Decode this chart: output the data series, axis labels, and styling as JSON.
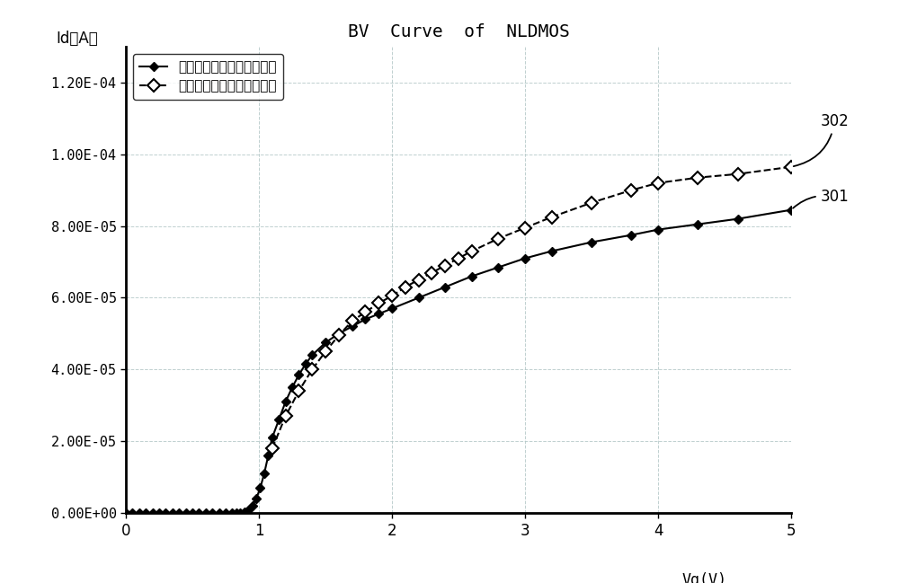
{
  "title": "BV  Curve  of  NLDMOS",
  "legend1": "未使用本专利所说明的方法",
  "legend2": "使用本专利所说明的方法后",
  "label301": "301",
  "label302": "302",
  "ylabel_text": "Id（A）",
  "xlim": [
    0,
    5.0
  ],
  "ylim": [
    0,
    0.00013
  ],
  "yticks": [
    0,
    2e-05,
    4e-05,
    6e-05,
    8e-05,
    0.0001,
    0.00012
  ],
  "ytick_labels": [
    "0.00E+00",
    "2.00E-05",
    "4.00E-05",
    "6.00E-05",
    "8.00E-05",
    "1.00E-04",
    "1.20E-04"
  ],
  "xticks": [
    0,
    1,
    2,
    3,
    4,
    5
  ],
  "background_color": "#ffffff",
  "plot_bg_color": "#ffffff",
  "grid_color": "#b0c4c4",
  "line_color": "#000000",
  "series1_x": [
    0.0,
    0.05,
    0.1,
    0.15,
    0.2,
    0.25,
    0.3,
    0.35,
    0.4,
    0.45,
    0.5,
    0.55,
    0.6,
    0.65,
    0.7,
    0.75,
    0.8,
    0.83,
    0.86,
    0.89,
    0.92,
    0.95,
    0.98,
    1.01,
    1.04,
    1.07,
    1.1,
    1.15,
    1.2,
    1.25,
    1.3,
    1.35,
    1.4,
    1.5,
    1.6,
    1.7,
    1.8,
    1.9,
    2.0,
    2.2,
    2.4,
    2.6,
    2.8,
    3.0,
    3.2,
    3.5,
    3.8,
    4.0,
    4.3,
    4.6,
    5.0
  ],
  "series1_y": [
    0.0,
    0.0,
    0.0,
    0.0,
    0.0,
    0.0,
    0.0,
    0.0,
    0.0,
    0.0,
    0.0,
    0.0,
    0.0,
    0.0,
    0.0,
    0.0,
    0.0,
    0.0,
    1e-07,
    3e-07,
    8e-07,
    2e-06,
    4e-06,
    7e-06,
    1.1e-05,
    1.6e-05,
    2.1e-05,
    2.6e-05,
    3.1e-05,
    3.5e-05,
    3.85e-05,
    4.15e-05,
    4.4e-05,
    4.75e-05,
    5e-05,
    5.2e-05,
    5.4e-05,
    5.55e-05,
    5.7e-05,
    6e-05,
    6.3e-05,
    6.6e-05,
    6.85e-05,
    7.1e-05,
    7.3e-05,
    7.55e-05,
    7.75e-05,
    7.9e-05,
    8.05e-05,
    8.2e-05,
    8.45e-05
  ],
  "series2_x": [
    1.1,
    1.2,
    1.3,
    1.4,
    1.5,
    1.6,
    1.7,
    1.8,
    1.9,
    2.0,
    2.1,
    2.2,
    2.3,
    2.4,
    2.5,
    2.6,
    2.8,
    3.0,
    3.2,
    3.5,
    3.8,
    4.0,
    4.3,
    4.6,
    5.0
  ],
  "series2_y": [
    1.8e-05,
    2.7e-05,
    3.4e-05,
    4e-05,
    4.5e-05,
    4.95e-05,
    5.35e-05,
    5.6e-05,
    5.85e-05,
    6.05e-05,
    6.3e-05,
    6.5e-05,
    6.7e-05,
    6.9e-05,
    7.1e-05,
    7.3e-05,
    7.65e-05,
    7.95e-05,
    8.25e-05,
    8.65e-05,
    9e-05,
    9.2e-05,
    9.35e-05,
    9.45e-05,
    9.65e-05
  ]
}
